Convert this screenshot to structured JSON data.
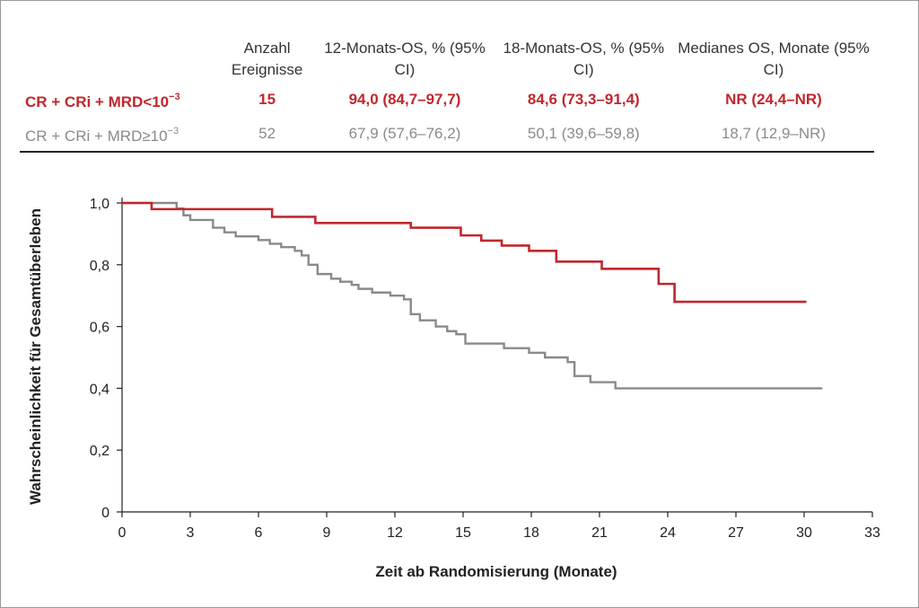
{
  "table": {
    "headers": [
      "",
      "Anzahl Ereignisse",
      "12-Monats-OS, % (95% CI)",
      "18-Monats-OS, % (95% CI)",
      "Medianes OS, Monate (95% CI)"
    ],
    "rows": [
      {
        "label": "CR + CRi + MRD<10",
        "exp": "−3",
        "events": "15",
        "os12": "94,0 (84,7–97,7)",
        "os18": "84,6 (73,3–91,4)",
        "median": "NR (24,4–NR)",
        "color": "#c0272d"
      },
      {
        "label": "CR + CRi + MRD≥10",
        "exp": "−3",
        "events": "52",
        "os12": "67,9 (57,6–76,2)",
        "os18": "50,1 (39,6–59,8)",
        "median": "18,7 (12,9–NR)",
        "color": "#8a8a8a"
      }
    ]
  },
  "chart_data": {
    "type": "line",
    "step": true,
    "xlabel": "Zeit ab Randomisierung (Monate)",
    "ylabel": "Wahrscheinlichkeit für Gesamtüberleben",
    "xlim": [
      0,
      33
    ],
    "ylim": [
      0,
      1.0
    ],
    "xticks": [
      0,
      3,
      6,
      9,
      12,
      15,
      18,
      21,
      24,
      27,
      30,
      33
    ],
    "xtick_labels": [
      "0",
      "3",
      "6",
      "9",
      "12",
      "15",
      "18",
      "21",
      "24",
      "27",
      "30",
      "33"
    ],
    "yticks": [
      0,
      0.2,
      0.4,
      0.6,
      0.8,
      1.0
    ],
    "ytick_labels": [
      "0",
      "0,2",
      "0,4",
      "0,6",
      "0,8",
      "1,0"
    ],
    "grid": false,
    "series": [
      {
        "name": "CR + CRi + MRD<10−3",
        "color": "#c0272d",
        "x": [
          0,
          1.3,
          6.6,
          8.5,
          12.7,
          14.9,
          15.8,
          16.7,
          17.9,
          19.1,
          21.1,
          23.6,
          24.3,
          30.1
        ],
        "y": [
          1.0,
          0.98,
          0.955,
          0.935,
          0.92,
          0.895,
          0.878,
          0.862,
          0.845,
          0.81,
          0.787,
          0.738,
          0.68,
          0.68
        ]
      },
      {
        "name": "CR + CRi + MRD≥10−3",
        "color": "#8a8a8a",
        "x": [
          0,
          2.4,
          2.7,
          3.0,
          4.0,
          4.5,
          5.0,
          6.0,
          6.5,
          7.0,
          7.6,
          7.9,
          8.2,
          8.6,
          9.2,
          9.6,
          10.1,
          10.4,
          11.0,
          11.8,
          12.4,
          12.7,
          13.1,
          13.8,
          14.3,
          14.7,
          15.1,
          16.8,
          17.9,
          18.6,
          19.6,
          19.9,
          20.6,
          21.7,
          30.8
        ],
        "y": [
          1.0,
          0.982,
          0.96,
          0.945,
          0.92,
          0.905,
          0.892,
          0.88,
          0.868,
          0.857,
          0.845,
          0.83,
          0.8,
          0.77,
          0.755,
          0.745,
          0.735,
          0.722,
          0.71,
          0.7,
          0.688,
          0.64,
          0.62,
          0.6,
          0.585,
          0.575,
          0.545,
          0.53,
          0.515,
          0.5,
          0.485,
          0.44,
          0.42,
          0.4,
          0.4
        ]
      }
    ]
  }
}
